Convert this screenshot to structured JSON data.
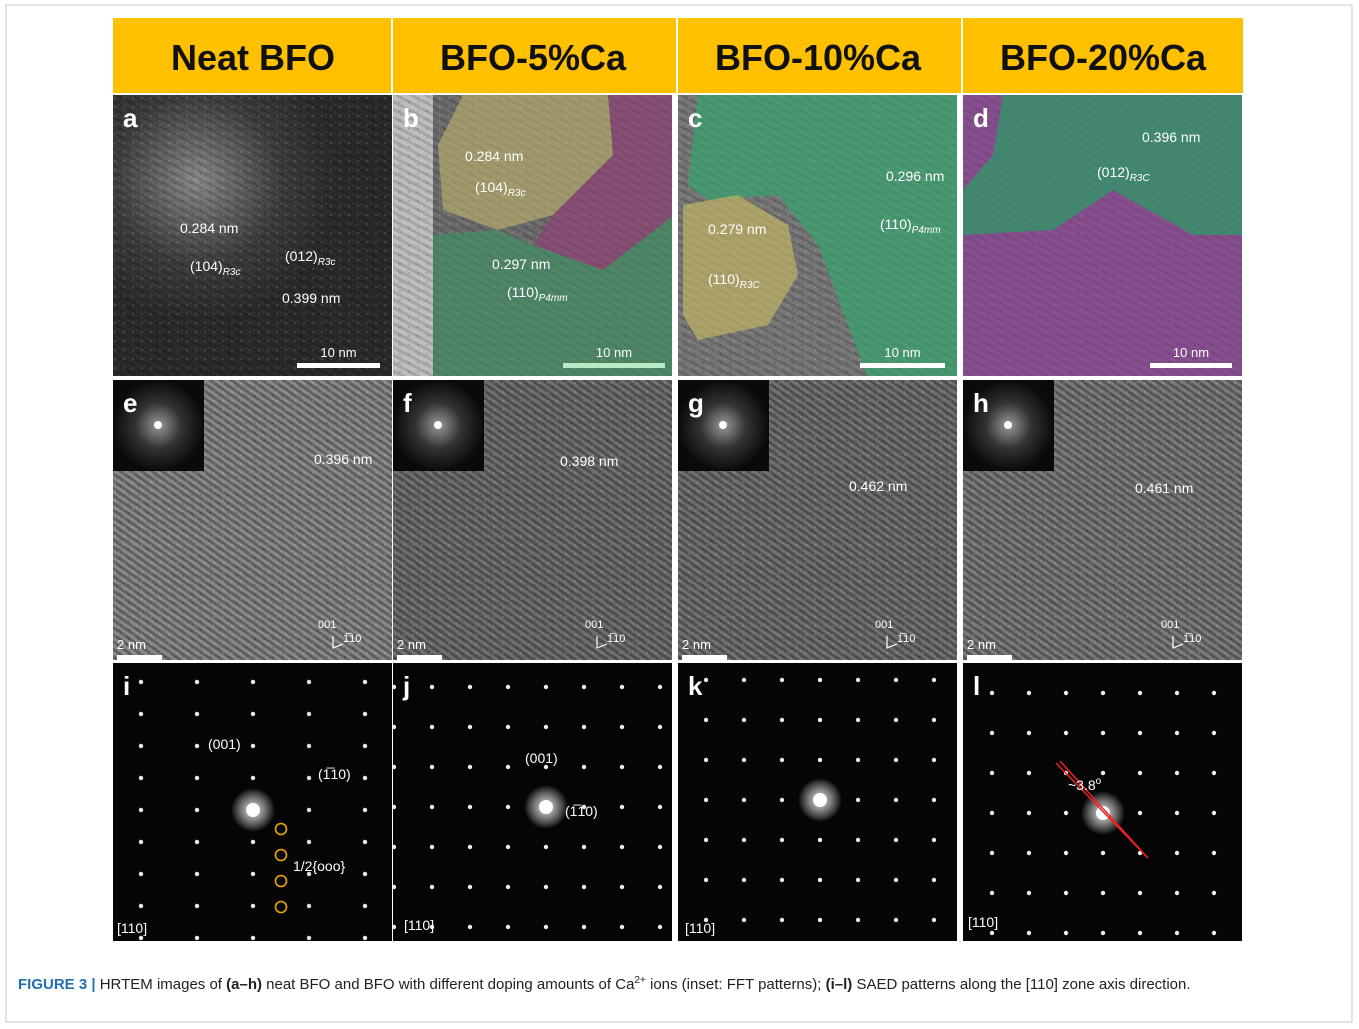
{
  "columns": [
    "Neat BFO",
    "BFO-5%Ca",
    "BFO-10%Ca",
    "BFO-20%Ca"
  ],
  "panels": [
    {
      "letter": "a",
      "labels": [
        {
          "text": "0.284 nm"
        },
        {
          "text": "(104)",
          "sub": "R3c"
        },
        {
          "text": "(012)",
          "sub": "R3c"
        },
        {
          "text": "0.399 nm"
        }
      ],
      "scale": "10 nm"
    },
    {
      "letter": "b",
      "labels": [
        {
          "text": "0.284 nm"
        },
        {
          "text": "(104)",
          "sub": "R3c"
        },
        {
          "text": "0.297 nm"
        },
        {
          "text": "(110)",
          "sub": "P4mm"
        }
      ],
      "scale": "10 nm"
    },
    {
      "letter": "c",
      "labels": [
        {
          "text": "0.296 nm"
        },
        {
          "text": "(110)",
          "sub": "P4mm"
        },
        {
          "text": "0.279 nm"
        },
        {
          "text": "(110)",
          "sub": "R3C"
        }
      ],
      "scale": "10 nm"
    },
    {
      "letter": "d",
      "labels": [
        {
          "text": "0.396 nm"
        },
        {
          "text": "(012)",
          "sub": "R3C"
        }
      ],
      "scale": "10 nm"
    },
    {
      "letter": "e",
      "labels": [
        {
          "text": "0.396 nm"
        },
        {
          "text": "001"
        },
        {
          "text": "1̅10"
        }
      ],
      "scale": "2 nm"
    },
    {
      "letter": "f",
      "labels": [
        {
          "text": "0.398 nm"
        },
        {
          "text": "001"
        },
        {
          "text": "1̅10"
        }
      ],
      "scale": "2 nm"
    },
    {
      "letter": "g",
      "labels": [
        {
          "text": "0.462 nm"
        },
        {
          "text": "001"
        },
        {
          "text": "1̅10"
        }
      ],
      "scale": "2 nm"
    },
    {
      "letter": "h",
      "labels": [
        {
          "text": "0.461 nm"
        },
        {
          "text": "001"
        },
        {
          "text": "1̅10"
        }
      ],
      "scale": "2 nm"
    },
    {
      "letter": "i",
      "labels": [
        {
          "text": "(001)"
        },
        {
          "text": "(1̅10)"
        },
        {
          "text": "1/2{ooo}"
        },
        {
          "text": "[110]"
        }
      ]
    },
    {
      "letter": "j",
      "labels": [
        {
          "text": "(001)"
        },
        {
          "text": "(1̅10)"
        },
        {
          "text": "[110]"
        }
      ]
    },
    {
      "letter": "k",
      "labels": [
        {
          "text": "[110]"
        }
      ]
    },
    {
      "letter": "l",
      "labels": [
        {
          "text": "~3.8",
          "sup": "o"
        },
        {
          "text": "[110]"
        }
      ]
    }
  ],
  "caption": {
    "label": "FIGURE 3 |",
    "parts": [
      " HRTEM images of ",
      "(a–h)",
      " neat BFO and BFO with different doping amounts of Ca",
      "2+",
      " ions (inset: FFT patterns); ",
      "(i–l)",
      " SAED patterns along the [110] zone axis direction."
    ]
  }
}
